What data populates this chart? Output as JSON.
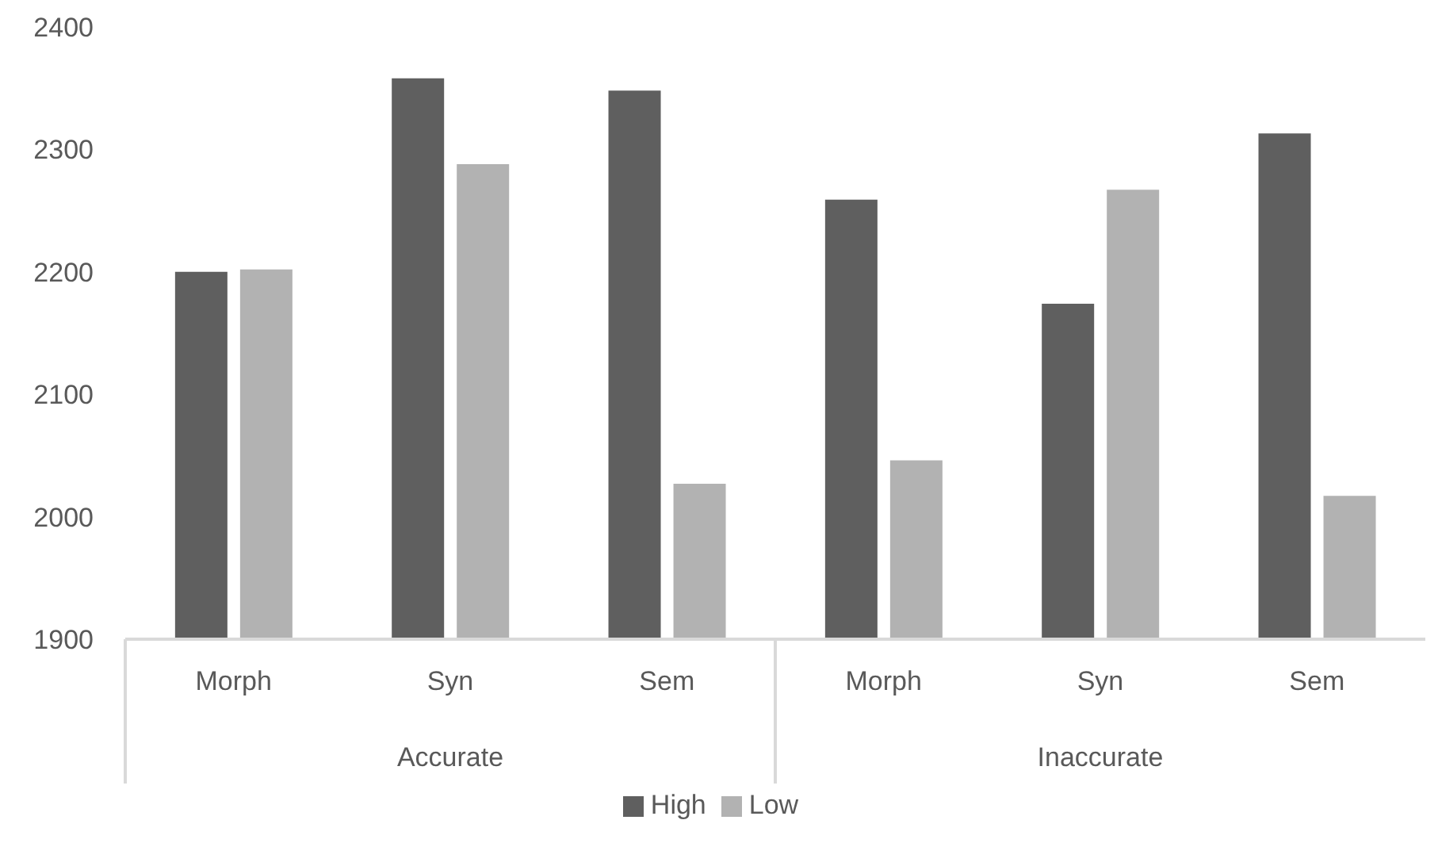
{
  "chart_data": {
    "type": "bar",
    "categories": [
      "Morph",
      "Syn",
      "Sem",
      "Morph",
      "Syn",
      "Sem"
    ],
    "series": [
      {
        "name": "High",
        "color": "#5f5f5f",
        "values": [
          2200,
          2358,
          2348,
          2259,
          2174,
          2313
        ]
      },
      {
        "name": "Low",
        "color": "#b2b2b2",
        "values": [
          2202,
          2288,
          2027,
          2046,
          2267,
          2017
        ]
      }
    ],
    "annotations": [
      "Accurate",
      "Inaccurate"
    ],
    "ylim": [
      1900,
      2400
    ],
    "yticks": [
      1900,
      2000,
      2100,
      2200,
      2300,
      2400
    ],
    "grid": false,
    "legend": "bottom"
  }
}
